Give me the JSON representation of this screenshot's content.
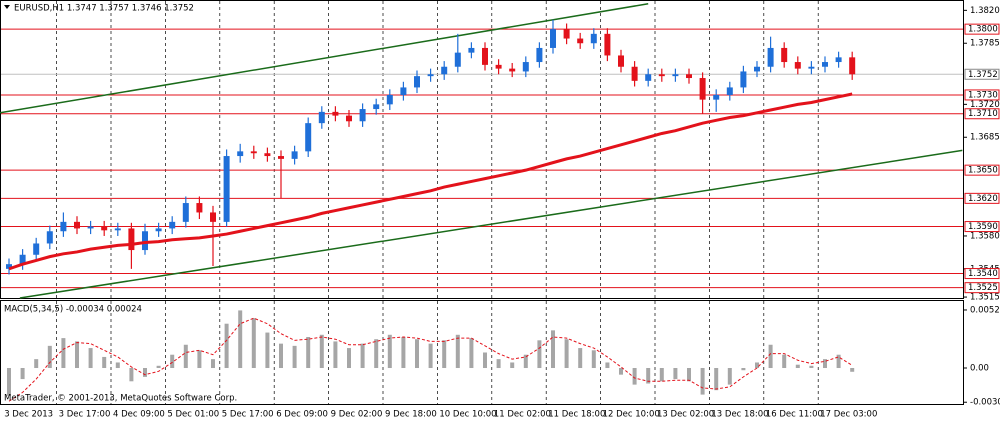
{
  "chart_data": {
    "type": "candlestick",
    "title": "EURUSD,H1  1.3747 1.3757 1.3746 1.3752",
    "x_labels": [
      "3 Dec 2013",
      "3 Dec 17:00",
      "4 Dec 09:00",
      "5 Dec 01:00",
      "5 Dec 17:00",
      "6 Dec 09:00",
      "9 Dec 02:00",
      "9 Dec 18:00",
      "10 Dec 10:00",
      "11 Dec 02:00",
      "11 Dec 18:00",
      "12 Dec 10:00",
      "13 Dec 02:00",
      "13 Dec 18:00",
      "16 Dec 11:00",
      "17 Dec 03:00"
    ],
    "ohlc": {
      "open": [
        1.3545,
        1.355,
        1.356,
        1.3572,
        1.3585,
        1.3595,
        1.3588,
        1.359,
        1.3586,
        1.3588,
        1.3565,
        1.3585,
        1.3588,
        1.3595,
        1.3615,
        1.3605,
        1.3595,
        1.3665,
        1.367,
        1.3668,
        1.3665,
        1.3662,
        1.367,
        1.37,
        1.3712,
        1.3708,
        1.3702,
        1.3715,
        1.372,
        1.373,
        1.3738,
        1.375,
        1.3752,
        1.376,
        1.3775,
        1.378,
        1.3762,
        1.3758,
        1.3755,
        1.3765,
        1.378,
        1.38,
        1.379,
        1.3785,
        1.3795,
        1.3772,
        1.376,
        1.3745,
        1.3752,
        1.375,
        1.3752,
        1.3748,
        1.3725,
        1.373,
        1.3738,
        1.3755,
        1.376,
        1.378,
        1.3765,
        1.3758,
        1.376,
        1.3765,
        1.377
      ],
      "high": [
        1.3556,
        1.3566,
        1.3578,
        1.3591,
        1.3605,
        1.3601,
        1.3596,
        1.3596,
        1.3594,
        1.3594,
        1.3593,
        1.3594,
        1.3601,
        1.3622,
        1.3622,
        1.3612,
        1.3672,
        1.3678,
        1.3676,
        1.3674,
        1.3671,
        1.3676,
        1.3706,
        1.3718,
        1.3718,
        1.3714,
        1.3721,
        1.3726,
        1.3736,
        1.3744,
        1.3756,
        1.3758,
        1.3766,
        1.3795,
        1.3786,
        1.3786,
        1.3768,
        1.3764,
        1.3771,
        1.3786,
        1.381,
        1.3806,
        1.3796,
        1.3801,
        1.3801,
        1.3778,
        1.3766,
        1.3758,
        1.3758,
        1.3758,
        1.3758,
        1.3754,
        1.3736,
        1.3744,
        1.3761,
        1.3766,
        1.3792,
        1.3786,
        1.3771,
        1.3766,
        1.3771,
        1.3776,
        1.3776
      ],
      "low": [
        1.3539,
        1.3544,
        1.3554,
        1.3566,
        1.3579,
        1.3582,
        1.3582,
        1.358,
        1.358,
        1.3545,
        1.356,
        1.3579,
        1.3582,
        1.3589,
        1.3598,
        1.3548,
        1.359,
        1.3658,
        1.3662,
        1.3659,
        1.362,
        1.3656,
        1.3664,
        1.3694,
        1.3702,
        1.3696,
        1.3696,
        1.3709,
        1.3714,
        1.3724,
        1.3732,
        1.3744,
        1.3746,
        1.3754,
        1.3769,
        1.3756,
        1.3752,
        1.3749,
        1.3749,
        1.3759,
        1.3774,
        1.3784,
        1.3779,
        1.3779,
        1.3766,
        1.3754,
        1.3739,
        1.3739,
        1.3744,
        1.3744,
        1.3742,
        1.371,
        1.3712,
        1.3724,
        1.3732,
        1.3749,
        1.3754,
        1.3759,
        1.3752,
        1.3752,
        1.3754,
        1.3759,
        1.3746
      ],
      "close": [
        1.355,
        1.356,
        1.3572,
        1.3585,
        1.3595,
        1.3588,
        1.359,
        1.3586,
        1.3588,
        1.3565,
        1.3585,
        1.3588,
        1.3595,
        1.3615,
        1.3605,
        1.3595,
        1.3665,
        1.367,
        1.3668,
        1.3665,
        1.3662,
        1.367,
        1.37,
        1.3712,
        1.3708,
        1.3702,
        1.3715,
        1.372,
        1.373,
        1.3738,
        1.375,
        1.3752,
        1.376,
        1.3775,
        1.378,
        1.3762,
        1.3758,
        1.3755,
        1.3765,
        1.378,
        1.38,
        1.379,
        1.3785,
        1.3795,
        1.3772,
        1.376,
        1.3745,
        1.3752,
        1.375,
        1.3752,
        1.3748,
        1.3725,
        1.373,
        1.3738,
        1.3755,
        1.376,
        1.378,
        1.3765,
        1.3758,
        1.376,
        1.3765,
        1.377,
        1.3752
      ]
    },
    "up_color": "#1f6fd8",
    "down_color": "#e3121b",
    "ma": {
      "color": "#e3121b",
      "values": [
        1.3545,
        1.355,
        1.3554,
        1.3558,
        1.3561,
        1.3563,
        1.3566,
        1.3568,
        1.357,
        1.3571,
        1.3573,
        1.3574,
        1.3576,
        1.3577,
        1.3578,
        1.358,
        1.3582,
        1.3585,
        1.3588,
        1.3591,
        1.3594,
        1.3597,
        1.36,
        1.3604,
        1.3607,
        1.361,
        1.3613,
        1.3616,
        1.3619,
        1.3622,
        1.3625,
        1.3628,
        1.3632,
        1.3635,
        1.3638,
        1.3641,
        1.3644,
        1.3647,
        1.365,
        1.3654,
        1.3658,
        1.3662,
        1.3665,
        1.3669,
        1.3673,
        1.3677,
        1.3681,
        1.3685,
        1.3689,
        1.3692,
        1.3696,
        1.37,
        1.3703,
        1.3706,
        1.3708,
        1.3711,
        1.3714,
        1.3717,
        1.372,
        1.3722,
        1.3725,
        1.3728,
        1.3731
      ]
    },
    "trendlines": {
      "color": "#1a6b1a",
      "lines": [
        {
          "x": [
            -0.66,
            47
          ],
          "y": [
            1.3711,
            1.3827
          ]
        },
        {
          "x": [
            0.8,
            70.1
          ],
          "y": [
            1.3514,
            1.3671
          ]
        }
      ]
    },
    "ylim": [
      1.3514,
      1.3831
    ],
    "yticks": [
      {
        "value": 1.382,
        "label": "1.3820"
      },
      1.3785,
      {
        "value": 1.372,
        "label": "1.3720"
      },
      1.3685,
      {
        "value": 1.358,
        "label": "1.3580"
      },
      1.3545,
      1.3515
    ],
    "levels": {
      "color": "#e3121b",
      "values": [
        {
          "value": 1.38,
          "label": "1.3800"
        },
        {
          "value": 1.373,
          "label": "1.3730"
        },
        {
          "value": 1.371,
          "label": "1.3710"
        },
        {
          "value": 1.365,
          "label": "1.3650"
        },
        {
          "value": 1.362,
          "label": "1.3620"
        },
        {
          "value": 1.359,
          "label": "1.3590"
        },
        {
          "value": 1.354,
          "label": "1.3540"
        },
        1.3525
      ]
    },
    "current_price": 1.3752,
    "macd": {
      "title": "MACD(5,34,5) -0.00034 0.00024",
      "histogram": {
        "color": "#a6a6a6",
        "values": [
          -0.0025,
          -0.001,
          0.0008,
          0.002,
          0.0027,
          0.0024,
          0.0018,
          0.001,
          0.0005,
          -0.0012,
          -0.0008,
          0.0002,
          0.0012,
          0.0021,
          0.0016,
          0.0008,
          0.004,
          0.0052,
          0.0045,
          0.0032,
          0.0022,
          0.002,
          0.0028,
          0.003,
          0.0024,
          0.0018,
          0.0022,
          0.0026,
          0.003,
          0.0028,
          0.0026,
          0.0022,
          0.0025,
          0.003,
          0.0027,
          0.0014,
          0.0008,
          0.0005,
          0.0012,
          0.0025,
          0.0034,
          0.0026,
          0.0018,
          0.0016,
          0.0005,
          -0.0006,
          -0.0015,
          -0.0014,
          -0.0012,
          -0.001,
          -0.0012,
          -0.0024,
          -0.002,
          -0.0015,
          -0.0002,
          0.0005,
          0.0021,
          0.0012,
          0.0003,
          0.0002,
          0.0008,
          0.0012,
          -0.00034
        ]
      },
      "signal": {
        "color": "#e3121b",
        "values": [
          -0.003,
          -0.0022,
          -0.001,
          0.0005,
          0.0017,
          0.0023,
          0.0022,
          0.0016,
          0.001,
          0.0001,
          -0.0006,
          -0.0003,
          0.0005,
          0.0014,
          0.0016,
          0.0012,
          0.0025,
          0.004,
          0.0045,
          0.004,
          0.0031,
          0.0025,
          0.0026,
          0.0028,
          0.0026,
          0.0021,
          0.0021,
          0.0024,
          0.0027,
          0.0028,
          0.0027,
          0.0024,
          0.0024,
          0.0027,
          0.0027,
          0.002,
          0.0013,
          0.0008,
          0.001,
          0.0018,
          0.0028,
          0.0027,
          0.0022,
          0.0018,
          0.001,
          0.0001,
          -0.0009,
          -0.0012,
          -0.0012,
          -0.0011,
          -0.0011,
          -0.0018,
          -0.0019,
          -0.0017,
          -0.0008,
          0.0,
          0.0013,
          0.0013,
          0.0007,
          0.0004,
          0.0006,
          0.001,
          0.00024
        ]
      },
      "ylim": [
        -0.00343,
        0.00596
      ],
      "yticks": [
        0.00524,
        {
          "value": 0,
          "label": "0.00"
        },
        -0.00309
      ]
    },
    "footer": "MetaTrader, © 2001-2013, MetaQuotes Software Corp."
  }
}
